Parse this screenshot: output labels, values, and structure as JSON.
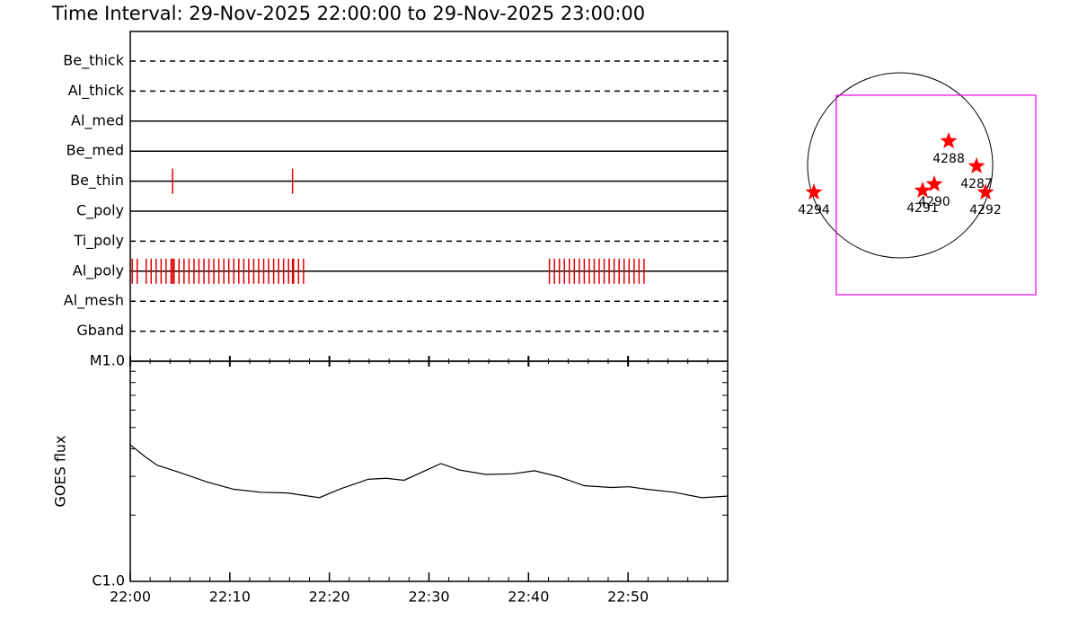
{
  "chart_data": [
    {
      "type": "timeline",
      "title": "Time Interval: 29-Nov-2025 22:00:00 to 29-Nov-2025 23:00:00",
      "xlim": [
        0,
        60
      ],
      "rows": [
        {
          "name": "Be_thick",
          "style": "dashed",
          "events": []
        },
        {
          "name": "Al_thick",
          "style": "dashed",
          "events": []
        },
        {
          "name": "Al_med",
          "style": "solid",
          "events": []
        },
        {
          "name": "Be_med",
          "style": "solid",
          "events": []
        },
        {
          "name": "Be_thin",
          "style": "solid",
          "events": [
            4.25,
            16.3
          ]
        },
        {
          "name": "C_poly",
          "style": "solid",
          "events": []
        },
        {
          "name": "Ti_poly",
          "style": "dashed",
          "events": []
        },
        {
          "name": "Al_poly",
          "style": "solid",
          "events": [
            0.2,
            0.7,
            1.6,
            2.1,
            2.6,
            3.1,
            3.6,
            4.1,
            4.25,
            4.4,
            4.9,
            5.4,
            5.9,
            6.4,
            6.9,
            7.4,
            7.9,
            8.4,
            8.9,
            9.4,
            9.9,
            10.4,
            10.9,
            11.4,
            11.9,
            12.4,
            12.9,
            13.4,
            13.9,
            14.4,
            14.9,
            15.4,
            15.9,
            16.3,
            16.4,
            16.9,
            17.4,
            42.1,
            42.6,
            43.1,
            43.6,
            44.1,
            44.6,
            45.1,
            45.6,
            46.1,
            46.6,
            47.1,
            47.6,
            48.1,
            48.6,
            49.1,
            49.6,
            50.1,
            50.6,
            51.1,
            51.6
          ]
        },
        {
          "name": "Al_mesh",
          "style": "dashed",
          "events": []
        },
        {
          "name": "Gband",
          "style": "dashed",
          "events": []
        }
      ],
      "color": "#e00000"
    },
    {
      "type": "line",
      "ylabel": "GOES flux",
      "log": true,
      "xlim": [
        0,
        60
      ],
      "xticks": [
        {
          "value": 0,
          "label": "22:00"
        },
        {
          "value": 10,
          "label": "22:10"
        },
        {
          "value": 20,
          "label": "22:20"
        },
        {
          "value": 30,
          "label": "22:30"
        },
        {
          "value": 40,
          "label": "22:40"
        },
        {
          "value": 50,
          "label": "22:50"
        }
      ],
      "xminorticks": [
        2,
        4,
        6,
        8,
        12,
        14,
        16,
        18,
        22,
        24,
        26,
        28,
        32,
        34,
        36,
        38,
        42,
        44,
        46,
        48,
        52,
        54,
        56,
        58
      ],
      "ylim": [
        1e-06,
        1e-05
      ],
      "yticks": [
        {
          "value": 1e-06,
          "label": "C1.0"
        },
        {
          "value": 1e-05,
          "label": "M1.0"
        }
      ],
      "yminorticks": [
        2e-06,
        3e-06,
        4e-06,
        5e-06,
        6e-06,
        7e-06,
        8e-06,
        9e-06
      ],
      "x": [
        0,
        1.4,
        2.7,
        5.0,
        7.7,
        10.4,
        13.1,
        15.8,
        19.0,
        21.2,
        23.9,
        25.7,
        27.5,
        29.4,
        31.2,
        33.0,
        35.7,
        38.4,
        40.6,
        42.9,
        45.6,
        48.3,
        50.1,
        51.9,
        54.6,
        57.4,
        60.0
      ],
      "values": [
        4.17e-06,
        3.71e-06,
        3.37e-06,
        3.12e-06,
        2.83e-06,
        2.62e-06,
        2.54e-06,
        2.52e-06,
        2.4e-06,
        2.64e-06,
        2.91e-06,
        2.94e-06,
        2.88e-06,
        3.15e-06,
        3.43e-06,
        3.21e-06,
        3.06e-06,
        3.08e-06,
        3.18e-06,
        3e-06,
        2.72e-06,
        2.67e-06,
        2.69e-06,
        2.62e-06,
        2.54e-06,
        2.4e-06,
        2.44e-06
      ],
      "color": "#000000"
    },
    {
      "type": "map",
      "disk_radius": 970,
      "fov": {
        "x": [
          -669,
          1422
        ],
        "y": [
          -1356,
          735
        ],
        "color": "#e000e0"
      },
      "points": [
        {
          "label": "4288",
          "x": 509,
          "y": 254
        },
        {
          "label": "4287",
          "x": 801,
          "y": -9
        },
        {
          "label": "4290",
          "x": 358,
          "y": -198
        },
        {
          "label": "4291",
          "x": 236,
          "y": -264
        },
        {
          "label": "4292",
          "x": 895,
          "y": -283
        },
        {
          "label": "4294",
          "x": -904,
          "y": -283
        }
      ],
      "color": "#ff0000"
    }
  ]
}
